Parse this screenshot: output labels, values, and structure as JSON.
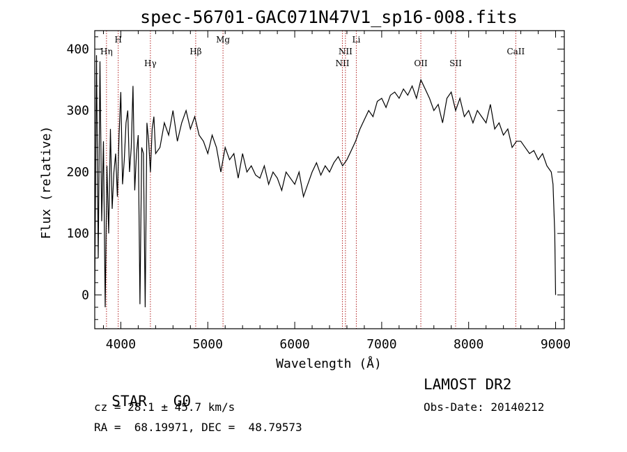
{
  "chart_data": {
    "type": "line",
    "title": "spec-56701-GAC071N47V1_sp16-008.fits",
    "xlabel": "Wavelength (Å)",
    "ylabel": "Flux (relative)",
    "xlim": [
      3700,
      9100
    ],
    "ylim": [
      -55,
      430
    ],
    "xticks": [
      4000,
      5000,
      6000,
      7000,
      8000,
      9000
    ],
    "yticks": [
      0,
      100,
      200,
      300,
      400
    ],
    "grid": false,
    "line_color": "#000000",
    "marker_color": "#b22222",
    "series": [
      {
        "x": [
          3700,
          3720,
          3740,
          3760,
          3780,
          3800,
          3820,
          3840,
          3860,
          3880,
          3900,
          3920,
          3940,
          3960,
          3980,
          4000,
          4020,
          4040,
          4060,
          4080,
          4100,
          4120,
          4140,
          4160,
          4180,
          4200,
          4220,
          4240,
          4260,
          4280,
          4300,
          4320,
          4340,
          4360,
          4380,
          4400,
          4450,
          4500,
          4550,
          4600,
          4650,
          4700,
          4750,
          4800,
          4850,
          4900,
          4950,
          5000,
          5050,
          5100,
          5150,
          5200,
          5250,
          5300,
          5350,
          5400,
          5450,
          5500,
          5550,
          5600,
          5650,
          5700,
          5750,
          5800,
          5850,
          5900,
          5950,
          6000,
          6050,
          6100,
          6150,
          6200,
          6250,
          6300,
          6350,
          6400,
          6450,
          6500,
          6550,
          6600,
          6650,
          6700,
          6750,
          6800,
          6850,
          6900,
          6950,
          7000,
          7050,
          7100,
          7150,
          7200,
          7250,
          7300,
          7350,
          7400,
          7450,
          7500,
          7550,
          7600,
          7650,
          7700,
          7750,
          7800,
          7850,
          7900,
          7950,
          8000,
          8050,
          8100,
          8150,
          8200,
          8250,
          8300,
          8350,
          8400,
          8450,
          8500,
          8550,
          8600,
          8650,
          8700,
          8750,
          8800,
          8850,
          8900,
          8950,
          8970,
          8990,
          9000
        ],
        "y": [
          0,
          390,
          60,
          380,
          120,
          250,
          -20,
          210,
          100,
          270,
          140,
          200,
          230,
          160,
          260,
          330,
          180,
          220,
          280,
          300,
          200,
          240,
          340,
          170,
          230,
          260,
          -15,
          240,
          230,
          -20,
          280,
          250,
          200,
          270,
          290,
          230,
          240,
          280,
          260,
          300,
          250,
          280,
          300,
          270,
          290,
          260,
          250,
          230,
          260,
          240,
          200,
          240,
          220,
          230,
          190,
          230,
          200,
          210,
          195,
          190,
          210,
          180,
          200,
          190,
          170,
          200,
          190,
          180,
          200,
          160,
          180,
          200,
          215,
          195,
          210,
          200,
          215,
          225,
          210,
          220,
          235,
          250,
          270,
          285,
          300,
          290,
          315,
          320,
          305,
          325,
          330,
          320,
          335,
          325,
          340,
          320,
          350,
          335,
          320,
          300,
          310,
          280,
          320,
          330,
          300,
          320,
          290,
          300,
          280,
          300,
          290,
          280,
          310,
          270,
          280,
          260,
          270,
          240,
          250,
          250,
          240,
          230,
          235,
          220,
          230,
          210,
          200,
          180,
          100,
          0
        ]
      }
    ],
    "lines": [
      {
        "label": "Hη",
        "x": 3835,
        "row": 1
      },
      {
        "label": "H",
        "x": 3970,
        "row": 0
      },
      {
        "label": "Hγ",
        "x": 4340,
        "row": 2
      },
      {
        "label": "Hβ",
        "x": 4861,
        "row": 1
      },
      {
        "label": "Mg",
        "x": 5175,
        "row": 0
      },
      {
        "label": "NII",
        "x": 6548,
        "row": 2
      },
      {
        "label": "NII",
        "x": 6583,
        "row": 1
      },
      {
        "label": "Li",
        "x": 6708,
        "row": 0
      },
      {
        "label": "OII",
        "x": 7450,
        "row": 2
      },
      {
        "label": "SII",
        "x": 7850,
        "row": 2
      },
      {
        "label": "CaII",
        "x": 8542,
        "row": 1
      }
    ]
  },
  "info": {
    "class_label": "STAR",
    "subclass_label": "G0",
    "survey": "LAMOST DR2",
    "redshift": "cz = 28.1 ± 45.7 km/s",
    "obs_date": "Obs-Date: 20140212",
    "coords": "RA =  68.19971, DEC =  48.79573"
  }
}
